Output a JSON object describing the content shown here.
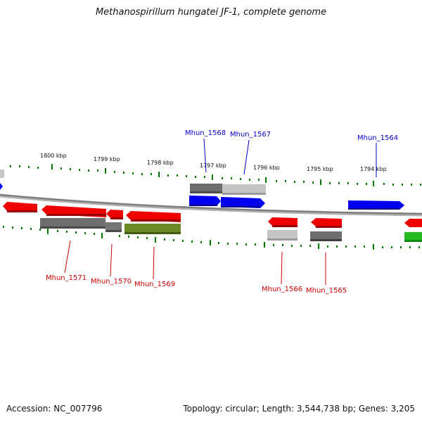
{
  "header": {
    "title": "Methanospirillum hungatei JF-1, complete genome"
  },
  "footer": {
    "accession": "Accession: NC_007796",
    "stats": "Topology: circular; Length: 3,544,738 bp; Genes: 3,205"
  },
  "colors": {
    "forward_strand": "#0000ee",
    "reverse_strand": "#ee0000",
    "label_forward": "#0000cc",
    "label_reverse": "#cc0000",
    "tick": "#007700",
    "backbone": "#888888",
    "gray_dark": "#6e6e6e",
    "gray_light": "#c4c4c4",
    "olive": "#6b8a23",
    "green": "#22bb22"
  },
  "ticks": [
    {
      "label": "1800 kbp"
    },
    {
      "label": "1799 kbp"
    },
    {
      "label": "1798 kbp"
    },
    {
      "label": "1797 kbp"
    },
    {
      "label": "1796 kbp"
    },
    {
      "label": "1795 kbp"
    },
    {
      "label": "1794 kbp"
    }
  ],
  "forward_labels": [
    {
      "text": "Mhun_1568"
    },
    {
      "text": "Mhun_1567"
    },
    {
      "text": "Mhun_1564"
    }
  ],
  "reverse_labels": [
    {
      "text": "Mhun_1571"
    },
    {
      "text": "Mhun_1570"
    },
    {
      "text": "Mhun_1569"
    },
    {
      "text": "Mhun_1566"
    },
    {
      "text": "Mhun_1565"
    }
  ]
}
